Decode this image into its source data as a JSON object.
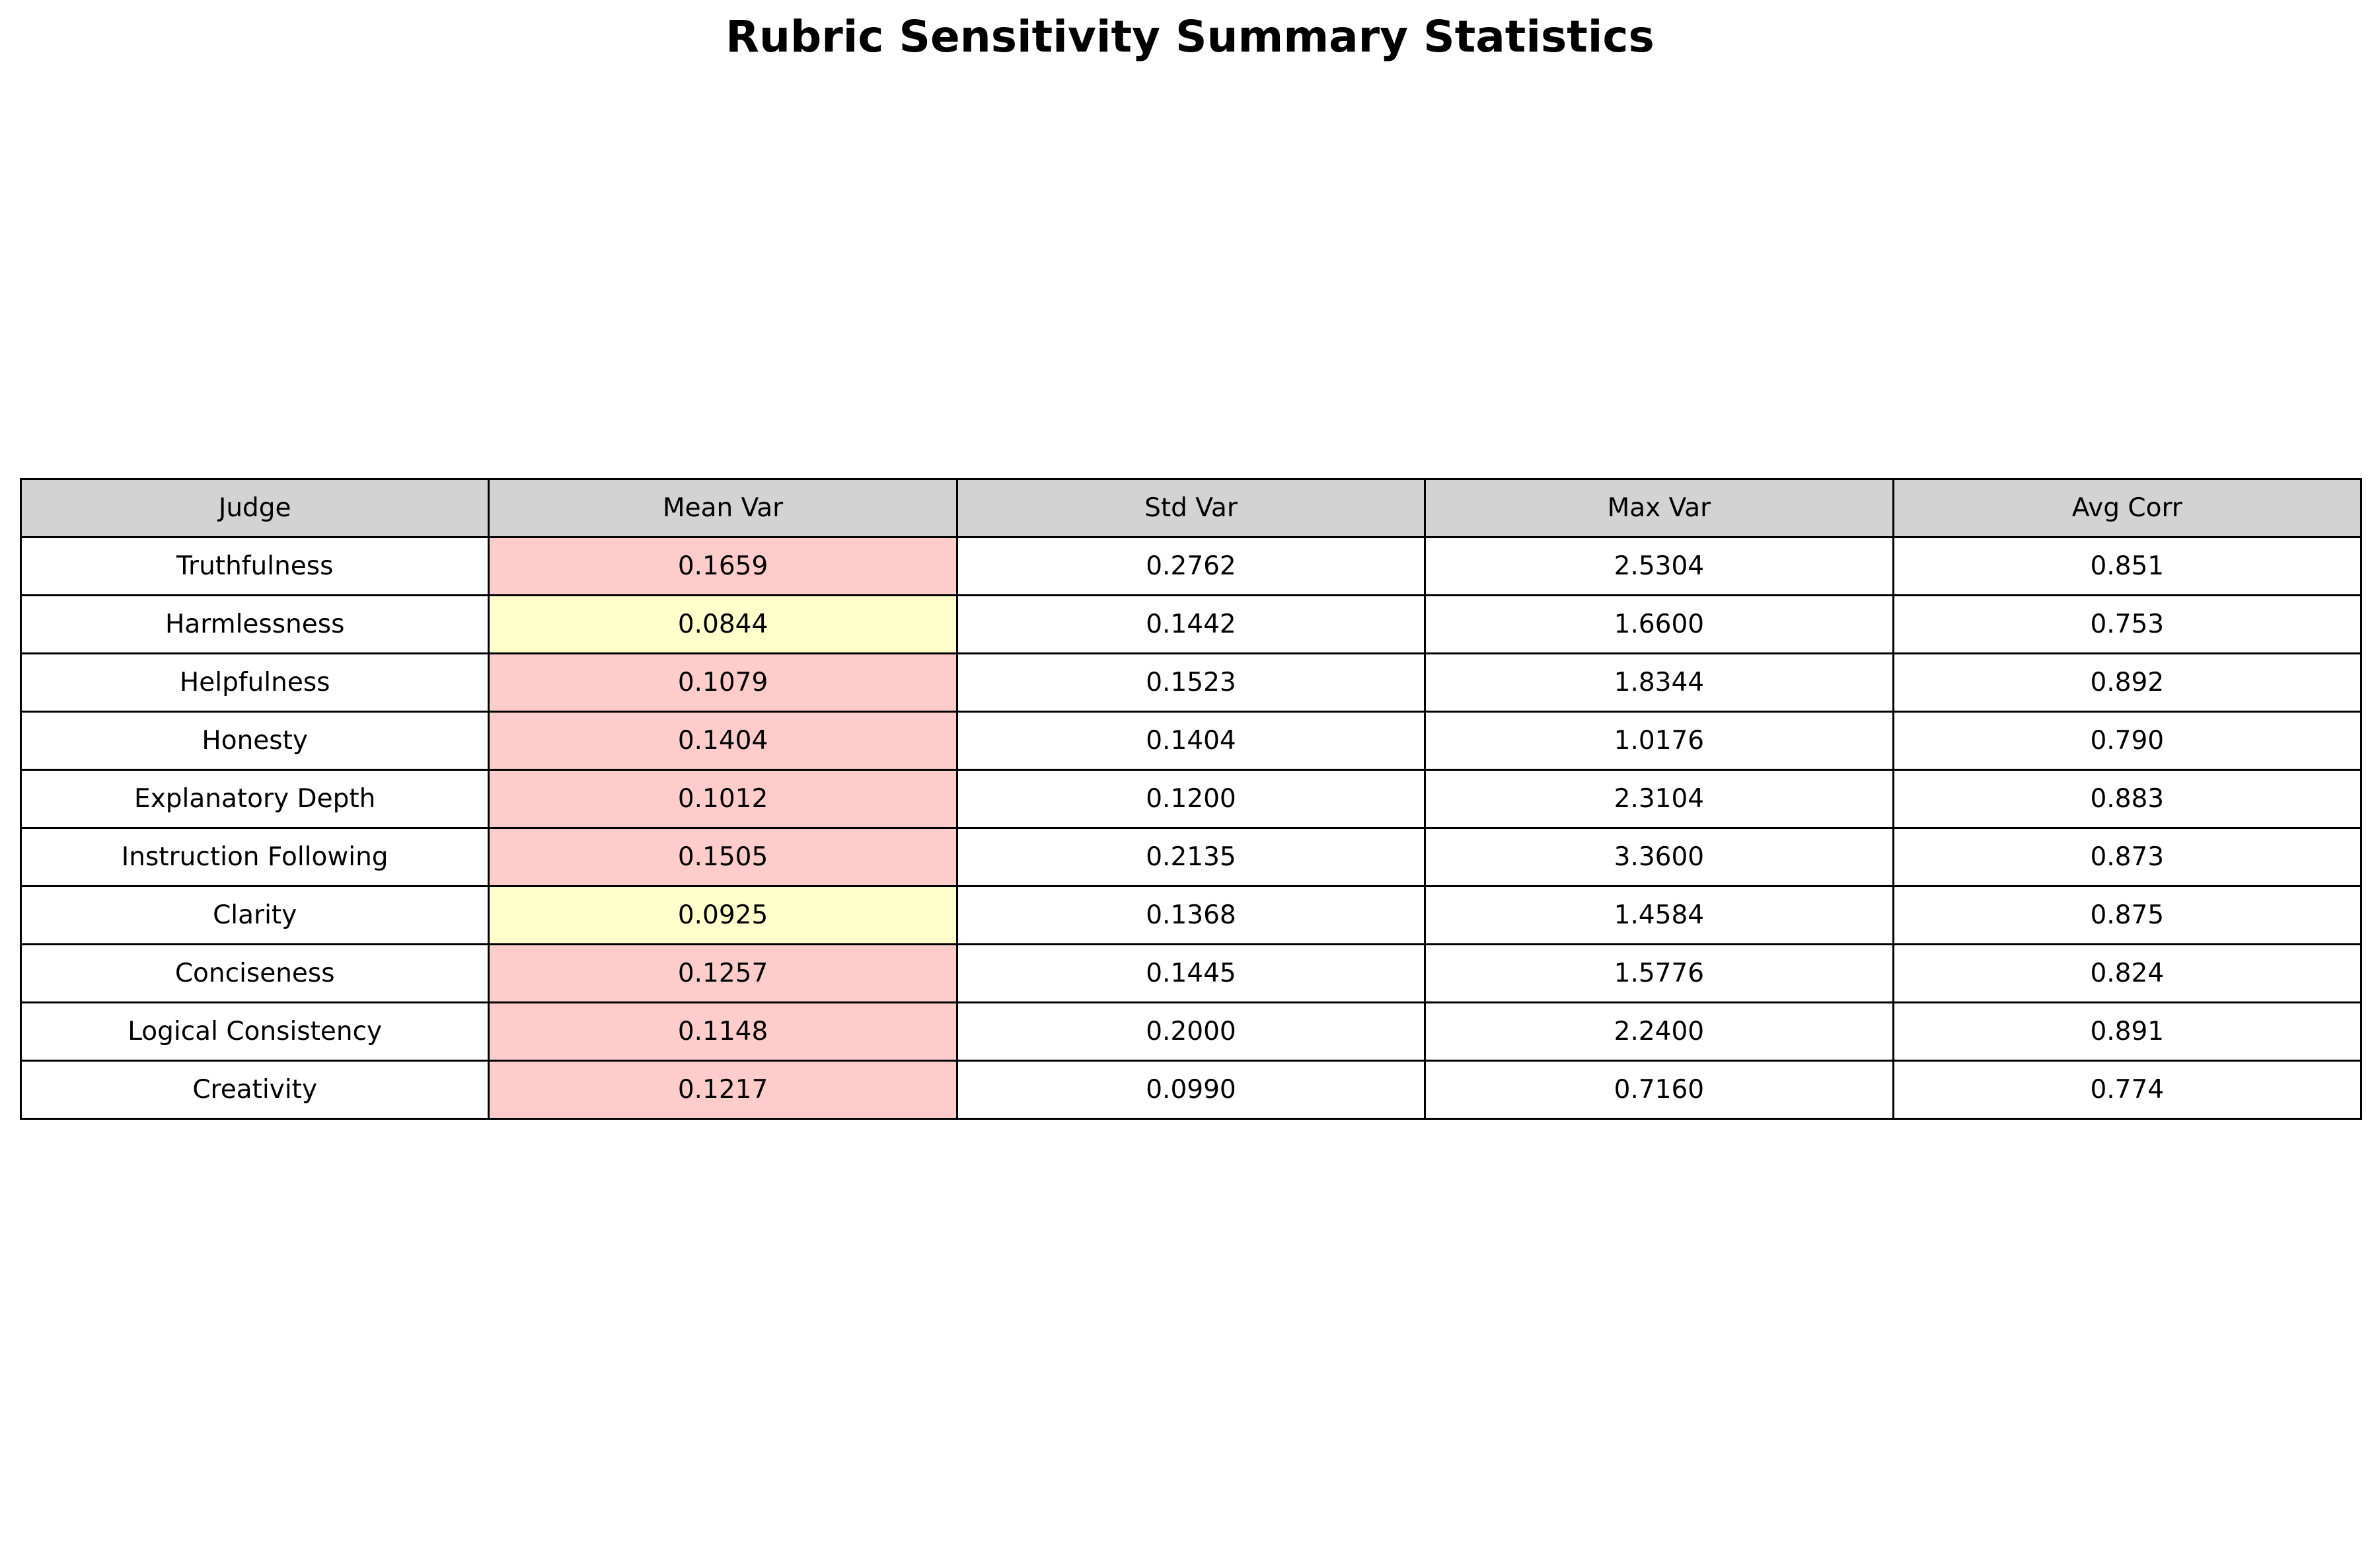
{
  "chart_data": {
    "type": "table",
    "title": "Rubric Sensitivity Summary Statistics",
    "columns": [
      "Judge",
      "Mean Var",
      "Std Var",
      "Max Var",
      "Avg Corr"
    ],
    "rows": [
      {
        "judge": "Truthfulness",
        "mean_var": "0.1659",
        "std_var": "0.2762",
        "max_var": "2.5304",
        "avg_corr": "0.851",
        "mean_var_highlight": "#ffcccc"
      },
      {
        "judge": "Harmlessness",
        "mean_var": "0.0844",
        "std_var": "0.1442",
        "max_var": "1.6600",
        "avg_corr": "0.753",
        "mean_var_highlight": "#ffffcc"
      },
      {
        "judge": "Helpfulness",
        "mean_var": "0.1079",
        "std_var": "0.1523",
        "max_var": "1.8344",
        "avg_corr": "0.892",
        "mean_var_highlight": "#ffcccc"
      },
      {
        "judge": "Honesty",
        "mean_var": "0.1404",
        "std_var": "0.1404",
        "max_var": "1.0176",
        "avg_corr": "0.790",
        "mean_var_highlight": "#ffcccc"
      },
      {
        "judge": "Explanatory Depth",
        "mean_var": "0.1012",
        "std_var": "0.1200",
        "max_var": "2.3104",
        "avg_corr": "0.883",
        "mean_var_highlight": "#ffcccc"
      },
      {
        "judge": "Instruction Following",
        "mean_var": "0.1505",
        "std_var": "0.2135",
        "max_var": "3.3600",
        "avg_corr": "0.873",
        "mean_var_highlight": "#ffcccc"
      },
      {
        "judge": "Clarity",
        "mean_var": "0.0925",
        "std_var": "0.1368",
        "max_var": "1.4584",
        "avg_corr": "0.875",
        "mean_var_highlight": "#ffffcc"
      },
      {
        "judge": "Conciseness",
        "mean_var": "0.1257",
        "std_var": "0.1445",
        "max_var": "1.5776",
        "avg_corr": "0.824",
        "mean_var_highlight": "#ffcccc"
      },
      {
        "judge": "Logical Consistency",
        "mean_var": "0.1148",
        "std_var": "0.2000",
        "max_var": "2.2400",
        "avg_corr": "0.891",
        "mean_var_highlight": "#ffcccc"
      },
      {
        "judge": "Creativity",
        "mean_var": "0.1217",
        "std_var": "0.0990",
        "max_var": "0.7160",
        "avg_corr": "0.774",
        "mean_var_highlight": "#ffcccc"
      }
    ],
    "colors": {
      "header_background": "#d3d3d3",
      "high_variance": "#ffcccc",
      "moderate_variance": "#ffffcc",
      "cell_background": "#ffffff"
    }
  }
}
